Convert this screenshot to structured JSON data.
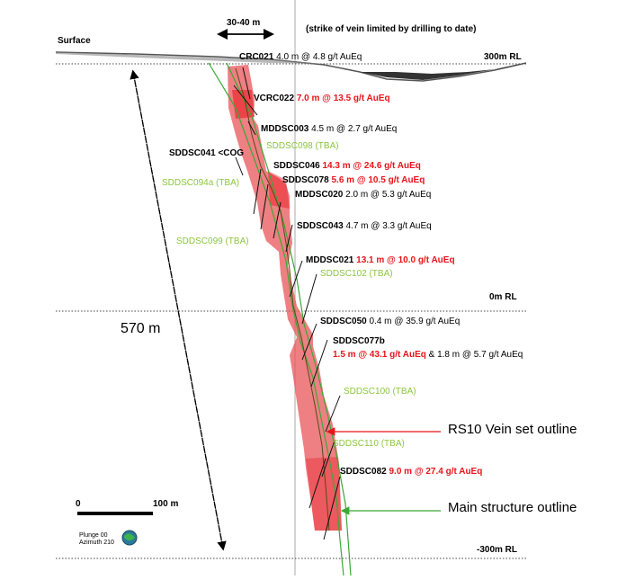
{
  "colors": {
    "vein": "#e8141a",
    "structure": "#3aa935",
    "ore_body": "#e8545a",
    "tba": "#8cc63f"
  },
  "header": {
    "surface": "Surface",
    "width_label": "30-40 m",
    "strike_note": "(strike of vein limited by drilling to date)"
  },
  "levels": {
    "rl300": "300m RL",
    "rl0": "0m RL",
    "rlm300": "-300m RL"
  },
  "depth_label": "570 m",
  "outline_labels": {
    "vein_set": "RS10 Vein set outline",
    "main_structure": "Main structure outline"
  },
  "scale": {
    "zero": "0",
    "hundred": "100 m"
  },
  "view": {
    "plunge": "Plunge 00",
    "azimuth": "Azimuth 210"
  },
  "holes": {
    "crc021": {
      "name": "CRC021",
      "result": "4.0 m @ 4.8 g/t AuEq"
    },
    "vcrc022": {
      "name": "VCRC022",
      "result": "7.0 m @ 13.5 g/t AuEq"
    },
    "mddsc003": {
      "name": "MDDSC003",
      "result": "4.5 m @ 2.7 g/t AuEq"
    },
    "sddsc098": {
      "name": "SDDSC098 (TBA)"
    },
    "sddsc041": {
      "name": "SDDSC041 <COG"
    },
    "sddsc046": {
      "name": "SDDSC046",
      "result": "14.3 m @ 24.6 g/t AuEq"
    },
    "sddsc094a": {
      "name": "SDDSC094a (TBA)"
    },
    "sddsc078": {
      "name": "SDDSC078",
      "result": "5.6 m @ 10.5 g/t AuEq"
    },
    "mddsc020": {
      "name": "MDDSC020",
      "result": "2.0 m @ 5.3 g/t AuEq"
    },
    "sddsc043": {
      "name": "SDDSC043",
      "result": "4.7 m @ 3.3 g/t AuEq"
    },
    "sddsc099": {
      "name": "SDDSC099 (TBA)"
    },
    "mddsc021": {
      "name": "MDDSC021",
      "result": "13.1 m @ 10.0 g/t AuEq"
    },
    "sddsc102": {
      "name": "SDDSC102 (TBA)"
    },
    "sddsc050": {
      "name": "SDDSC050",
      "result": "0.4 m @ 35.9 g/t AuEq"
    },
    "sddsc077b": {
      "name": "SDDSC077b",
      "result1": "1.5 m @ 43.1 g/t AuEq",
      "amp": "&",
      "result2": "1.8 m @ 5.7 g/t AuEq"
    },
    "sddsc100": {
      "name": "SDDSC100 (TBA)"
    },
    "sddsc110": {
      "name": "SDDSC110 (TBA)"
    },
    "sddsc082": {
      "name": "SDDSC082",
      "result": "9.0 m @ 27.4 g/t AuEq"
    }
  }
}
